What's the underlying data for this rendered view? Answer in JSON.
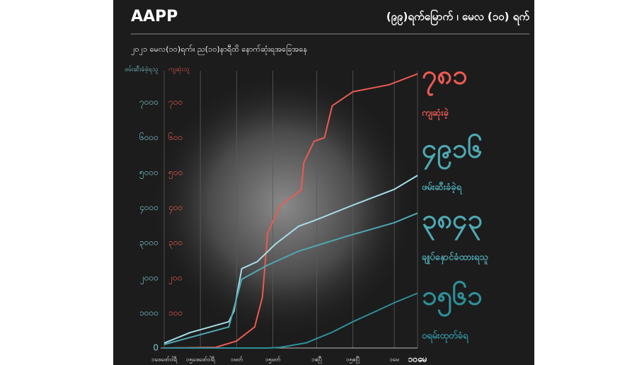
{
  "brand": "AAPP",
  "chart_data": {
    "type": "line",
    "title": "(၉၉)ရက်မြောက် ၊ မေလ (၁၀) ရက်",
    "subtitle": "၂၀၂၁ မေလ(၁၀)ရက်။ ည(၁၀)နာရီထိ နောက်ဆုံးရအခြေအနေ",
    "y_label": "ဖမ်းဆီးခံခဲ့ရသူ",
    "y2_label": "ကျဆုံးသူ",
    "xlim": [
      0,
      98
    ],
    "xticks": [
      {
        "value": 0,
        "label": "၁ဖေဖော်ဝါရီ"
      },
      {
        "value": 14,
        "label": "၁၅ဖေဖော်ဝါရီ"
      },
      {
        "value": 28,
        "label": "၁မတ်"
      },
      {
        "value": 42,
        "label": "၁၅မတ်"
      },
      {
        "value": 59,
        "label": "၁ဧပြီ"
      },
      {
        "value": 73,
        "label": "၁၅ဧပြီ"
      },
      {
        "value": 89,
        "label": "၁မေ"
      },
      {
        "value": 98,
        "label": "၁၀မေ"
      }
    ],
    "ylim": [
      0,
      8000
    ],
    "yticks": [
      0,
      {
        "value": 1000,
        "label": "၁၀၀၀"
      },
      {
        "value": 2000,
        "label": "၂၀၀၀"
      },
      {
        "value": 3000,
        "label": "၃၀၀၀"
      },
      {
        "value": 4000,
        "label": "၄၀၀၀"
      },
      {
        "value": 5000,
        "label": "၅၀၀၀"
      },
      {
        "value": 6000,
        "label": "၆၀၀၀"
      },
      {
        "value": 7000,
        "label": "၇၀၀၀"
      }
    ],
    "y2lim": [
      0,
      800
    ],
    "y2ticks": [
      {
        "value": 100,
        "label": "၁၀၀"
      },
      {
        "value": 200,
        "label": "၂၀၀"
      },
      {
        "value": 300,
        "label": "၃၀၀"
      },
      {
        "value": 400,
        "label": "၄၀၀"
      },
      {
        "value": 500,
        "label": "၅၀၀"
      },
      {
        "value": 600,
        "label": "၆၀၀"
      },
      {
        "value": 700,
        "label": "၇၀၀"
      }
    ],
    "grid": true,
    "series": [
      {
        "name": "ကျဆုံးခဲ့",
        "color": "#ec5a52",
        "axis": "y2",
        "total_label": "၇၈၁",
        "x": [
          0,
          20,
          28,
          35,
          38,
          40,
          45,
          53,
          54,
          58,
          62,
          65,
          73,
          87,
          98
        ],
        "values": [
          0,
          2,
          20,
          60,
          145,
          327,
          407,
          450,
          528,
          589,
          599,
          690,
          730,
          750,
          781
        ]
      },
      {
        "name": "ဖမ်းဆီးခံခဲ့ရ",
        "color": "#a6dde8",
        "total_label": "၄၉၁၆",
        "x": [
          0,
          10,
          25,
          27,
          30,
          36,
          43,
          52,
          58,
          73,
          89,
          98
        ],
        "values": [
          140,
          440,
          750,
          1050,
          2260,
          2460,
          2960,
          3470,
          3630,
          4070,
          4520,
          4916
        ]
      },
      {
        "name": "ချုပ်နှောင်ခံထားရသူ",
        "color": "#4ea9b3",
        "total_label": "၃၈၄၃",
        "x": [
          0,
          25,
          30,
          40,
          52,
          70,
          89,
          98
        ],
        "values": [
          100,
          600,
          1960,
          2360,
          2760,
          3170,
          3570,
          3843
        ]
      },
      {
        "name": "ဝရမ်းထုတ်ခံရ",
        "color": "#2f8f99",
        "total_label": "၁၅၆၁",
        "x": [
          0,
          40,
          45,
          55,
          65,
          73,
          82,
          89,
          98
        ],
        "values": [
          0,
          0,
          20,
          150,
          450,
          750,
          1050,
          1290,
          1561
        ]
      }
    ]
  }
}
